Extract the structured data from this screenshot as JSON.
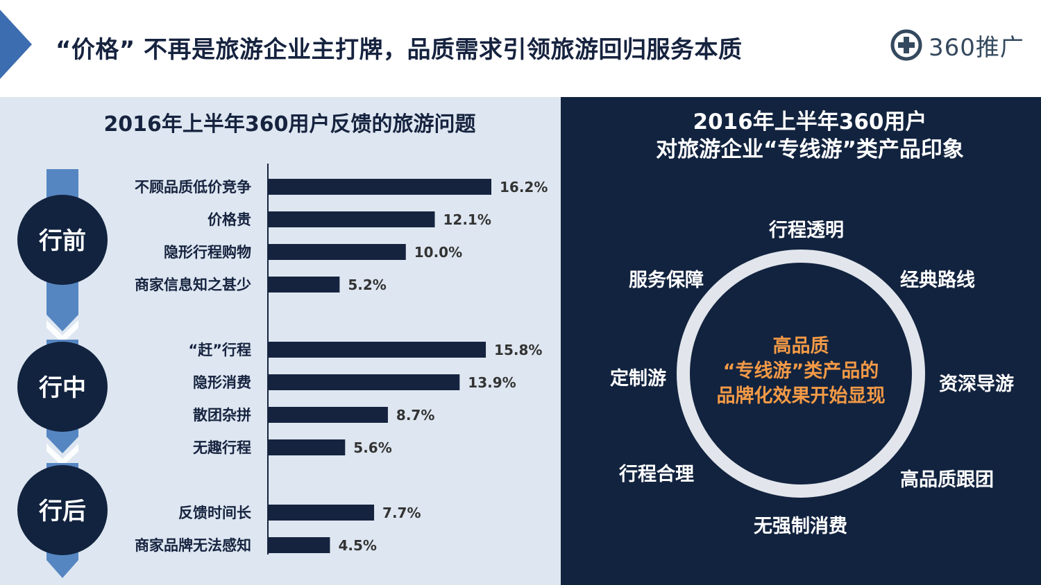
{
  "header": {
    "title": "“价格” 不再是旅游企业主打牌，品质需求引领旅游回归服务本质",
    "logo_text": "360推广"
  },
  "colors": {
    "navy": "#12233f",
    "bar": "#16233f",
    "accent_orange": "#f39a46",
    "panel_light": "#dee7f1",
    "flow_blue": "#5586c2"
  },
  "left": {
    "title": "2016年上半年360用户反馈的旅游问题",
    "stages": [
      "行前",
      "行中",
      "行后"
    ]
  },
  "chart_data": {
    "type": "bar",
    "orientation": "horizontal",
    "title": "2016年上半年360用户反馈的旅游问题",
    "unit": "%",
    "groups": [
      {
        "stage": "行前",
        "categories": [
          "不顾品质低价竞争",
          "价格贵",
          "隐形行程购物",
          "商家信息知之甚少"
        ],
        "values": [
          16.2,
          12.1,
          10.0,
          5.2
        ],
        "labels": [
          "16.2%",
          "12.1%",
          "10.0%",
          "5.2%"
        ]
      },
      {
        "stage": "行中",
        "categories": [
          "“赶”行程",
          "隐形消费",
          "散团杂拼",
          "无趣行程"
        ],
        "values": [
          15.8,
          13.9,
          8.7,
          5.6
        ],
        "labels": [
          "15.8%",
          "13.9%",
          "8.7%",
          "5.6%"
        ]
      },
      {
        "stage": "行后",
        "categories": [
          "反馈时间长",
          "商家品牌无法感知"
        ],
        "values": [
          7.7,
          4.5
        ],
        "labels": [
          "7.7%",
          "4.5%"
        ]
      }
    ],
    "xlim": [
      0,
      16.2
    ]
  },
  "right": {
    "title_line1": "2016年上半年360用户",
    "title_line2": "对旅游企业“专线游”类产品印象",
    "center_lines": [
      "高品质",
      "“专线游”类产品的",
      "品牌化效果开始显现"
    ],
    "attributes": [
      "行程透明",
      "服务保障",
      "经典路线",
      "定制游",
      "资深导游",
      "行程合理",
      "高品质跟团",
      "无强制消费"
    ]
  }
}
